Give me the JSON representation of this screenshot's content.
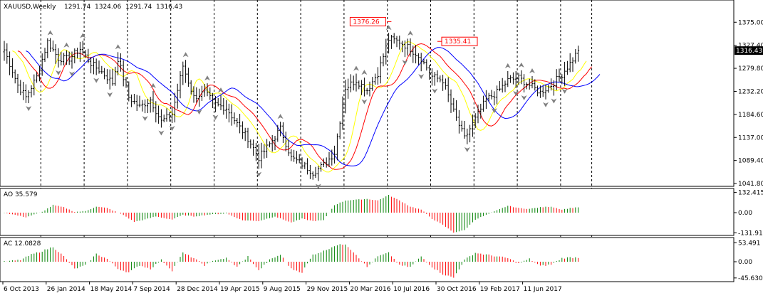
{
  "header": {
    "symbol": "XAUUSD,Weekly",
    "ohlc": [
      "1291.74",
      "1324.06",
      "1291.74",
      "1316.43"
    ]
  },
  "colors": {
    "candle": "#000000",
    "ma_fast": "#ffff00",
    "ma_mid": "#ff0000",
    "ma_slow": "#0000ff",
    "ao_up": "#008000",
    "ao_down": "#ff0000",
    "fractal": "#808080",
    "grid": "#000000",
    "price_tag_bg": "#000000",
    "price_tag_fg": "#ffffff",
    "callout": "#ff0000"
  },
  "chart_data": [
    {
      "type": "candlestick",
      "name": "main",
      "title": "XAUUSD,Weekly",
      "y_ticks": [
        "1375.00",
        "1327.40",
        "1279.80",
        "1232.20",
        "1184.60",
        "1137.00",
        "1089.40",
        "1041.80"
      ],
      "y_tick_values": [
        1375.0,
        1327.4,
        1279.8,
        1232.2,
        1184.6,
        1137.0,
        1089.4,
        1041.8
      ],
      "ylim": [
        1036,
        1418
      ],
      "x_ticks": [
        "6 Oct 2013",
        "26 Jan 2014",
        "18 May 2014",
        "7 Sep 2014",
        "28 Dec 2014",
        "19 Apr 2015",
        "9 Aug 2015",
        "29 Nov 2015",
        "20 Mar 2016",
        "10 Jul 2016",
        "30 Oct 2016",
        "19 Feb 2017",
        "11 Jun 2017"
      ],
      "x_tick_index": [
        0,
        16,
        32,
        48,
        64,
        80,
        96,
        112,
        128,
        144,
        160,
        176,
        192
      ],
      "last_price": "1316.43",
      "annotations": [
        {
          "label": "1376.26",
          "index": 143,
          "value": 1376.26
        },
        {
          "label": "1335.41",
          "index": 160,
          "value": 1335.41
        }
      ],
      "close_anchors": [
        [
          0,
          1318
        ],
        [
          5,
          1245
        ],
        [
          8,
          1220
        ],
        [
          12,
          1262
        ],
        [
          16,
          1335
        ],
        [
          20,
          1300
        ],
        [
          24,
          1300
        ],
        [
          28,
          1320
        ],
        [
          32,
          1290
        ],
        [
          36,
          1272
        ],
        [
          40,
          1250
        ],
        [
          42,
          1300
        ],
        [
          46,
          1220
        ],
        [
          50,
          1200
        ],
        [
          54,
          1215
        ],
        [
          58,
          1170
        ],
        [
          62,
          1185
        ],
        [
          66,
          1285
        ],
        [
          70,
          1220
        ],
        [
          74,
          1230
        ],
        [
          78,
          1205
        ],
        [
          82,
          1198
        ],
        [
          86,
          1165
        ],
        [
          90,
          1135
        ],
        [
          94,
          1095
        ],
        [
          98,
          1123
        ],
        [
          102,
          1155
        ],
        [
          106,
          1095
        ],
        [
          110,
          1082
        ],
        [
          114,
          1065
        ],
        [
          118,
          1080
        ],
        [
          122,
          1105
        ],
        [
          126,
          1240
        ],
        [
          130,
          1255
        ],
        [
          134,
          1235
        ],
        [
          138,
          1270
        ],
        [
          142,
          1340
        ],
        [
          146,
          1335
        ],
        [
          150,
          1320
        ],
        [
          154,
          1300
        ],
        [
          158,
          1263
        ],
        [
          162,
          1255
        ],
        [
          166,
          1190
        ],
        [
          170,
          1135
        ],
        [
          174,
          1175
        ],
        [
          178,
          1215
        ],
        [
          182,
          1230
        ],
        [
          186,
          1255
        ],
        [
          190,
          1260
        ],
        [
          194,
          1245
        ],
        [
          198,
          1230
        ],
        [
          202,
          1245
        ],
        [
          206,
          1268
        ],
        [
          209,
          1290
        ],
        [
          212,
          1316
        ]
      ],
      "ma_labels": [
        "fast",
        "mid",
        "slow"
      ]
    },
    {
      "type": "bar",
      "name": "AO",
      "label": "AO 35.579",
      "y_ticks": [
        "132.415",
        "0.00",
        "-131.914"
      ],
      "y_tick_values": [
        132.415,
        0,
        -131.914
      ],
      "ylim": [
        -140,
        140
      ],
      "anchors": [
        [
          0,
          0
        ],
        [
          8,
          -30
        ],
        [
          14,
          5
        ],
        [
          18,
          50
        ],
        [
          22,
          35
        ],
        [
          26,
          5
        ],
        [
          30,
          10
        ],
        [
          34,
          40
        ],
        [
          38,
          30
        ],
        [
          44,
          -15
        ],
        [
          48,
          -60
        ],
        [
          52,
          -45
        ],
        [
          56,
          -25
        ],
        [
          62,
          -45
        ],
        [
          66,
          -15
        ],
        [
          70,
          -25
        ],
        [
          76,
          -12
        ],
        [
          82,
          -5
        ],
        [
          88,
          -50
        ],
        [
          94,
          -55
        ],
        [
          100,
          -25
        ],
        [
          106,
          -65
        ],
        [
          110,
          -40
        ],
        [
          114,
          -55
        ],
        [
          118,
          -50
        ],
        [
          122,
          50
        ],
        [
          126,
          80
        ],
        [
          130,
          85
        ],
        [
          134,
          90
        ],
        [
          138,
          80
        ],
        [
          142,
          115
        ],
        [
          146,
          80
        ],
        [
          150,
          40
        ],
        [
          154,
          20
        ],
        [
          158,
          -40
        ],
        [
          162,
          -80
        ],
        [
          166,
          -130
        ],
        [
          170,
          -115
        ],
        [
          174,
          -45
        ],
        [
          178,
          -15
        ],
        [
          182,
          15
        ],
        [
          186,
          45
        ],
        [
          190,
          30
        ],
        [
          194,
          25
        ],
        [
          198,
          35
        ],
        [
          202,
          40
        ],
        [
          206,
          20
        ],
        [
          209,
          30
        ],
        [
          212,
          36
        ]
      ]
    },
    {
      "type": "bar",
      "name": "AC",
      "label": "AC 12.0828",
      "y_ticks": [
        "53.491",
        "0.00",
        "-45.6303"
      ],
      "y_tick_values": [
        53.491,
        0,
        -45.6303
      ],
      "ylim": [
        -52,
        60
      ],
      "anchors": [
        [
          0,
          0
        ],
        [
          6,
          5
        ],
        [
          10,
          20
        ],
        [
          14,
          30
        ],
        [
          18,
          42
        ],
        [
          22,
          15
        ],
        [
          26,
          -20
        ],
        [
          30,
          -10
        ],
        [
          34,
          22
        ],
        [
          38,
          8
        ],
        [
          42,
          -20
        ],
        [
          46,
          -30
        ],
        [
          50,
          -10
        ],
        [
          54,
          -20
        ],
        [
          58,
          5
        ],
        [
          62,
          -25
        ],
        [
          66,
          25
        ],
        [
          70,
          10
        ],
        [
          74,
          -10
        ],
        [
          78,
          5
        ],
        [
          82,
          10
        ],
        [
          86,
          -15
        ],
        [
          90,
          15
        ],
        [
          94,
          -25
        ],
        [
          98,
          5
        ],
        [
          102,
          20
        ],
        [
          106,
          -20
        ],
        [
          110,
          -30
        ],
        [
          114,
          20
        ],
        [
          118,
          30
        ],
        [
          122,
          45
        ],
        [
          126,
          50
        ],
        [
          130,
          20
        ],
        [
          134,
          -15
        ],
        [
          138,
          15
        ],
        [
          142,
          25
        ],
        [
          146,
          -10
        ],
        [
          150,
          -15
        ],
        [
          154,
          15
        ],
        [
          158,
          -15
        ],
        [
          162,
          -35
        ],
        [
          166,
          -45
        ],
        [
          170,
          5
        ],
        [
          174,
          25
        ],
        [
          178,
          20
        ],
        [
          182,
          15
        ],
        [
          186,
          10
        ],
        [
          190,
          -5
        ],
        [
          194,
          8
        ],
        [
          198,
          -12
        ],
        [
          202,
          -8
        ],
        [
          206,
          10
        ],
        [
          209,
          12
        ],
        [
          212,
          12
        ]
      ]
    }
  ]
}
